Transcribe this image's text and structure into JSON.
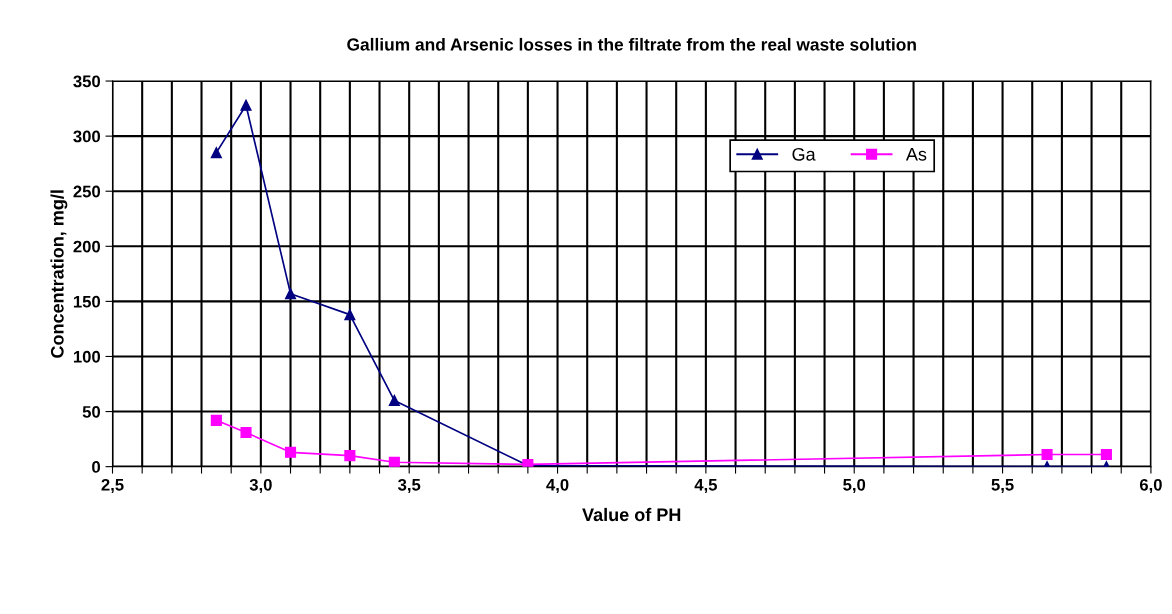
{
  "chart_data": {
    "type": "line",
    "title": "Gallium and Arsenic losses in the filtrate from the real waste solution",
    "xlabel": "Value of PH",
    "ylabel": "Concentration, mg/l",
    "x": [
      2.85,
      2.95,
      3.1,
      3.3,
      3.45,
      3.9,
      5.65,
      5.85
    ],
    "series": [
      {
        "name": "Ga",
        "color": "#000080",
        "marker": "triangle",
        "values": [
          285,
          328,
          157,
          138,
          60,
          1,
          0,
          0
        ]
      },
      {
        "name": "As",
        "color": "#ff00ff",
        "marker": "square",
        "values": [
          42,
          31,
          13,
          10,
          4,
          2,
          11,
          11
        ]
      }
    ],
    "xlim": [
      2.5,
      6.0
    ],
    "xticks": [
      {
        "value": 2.5,
        "label": "2,5"
      },
      {
        "value": 2.6,
        "label": null
      },
      {
        "value": 2.7,
        "label": null
      },
      {
        "value": 2.8,
        "label": null
      },
      {
        "value": 2.9,
        "label": null
      },
      {
        "value": 3.0,
        "label": "3,0"
      },
      {
        "value": 3.1,
        "label": null
      },
      {
        "value": 3.2,
        "label": null
      },
      {
        "value": 3.3,
        "label": null
      },
      {
        "value": 3.4,
        "label": null
      },
      {
        "value": 3.5,
        "label": "3,5"
      },
      {
        "value": 3.6,
        "label": null
      },
      {
        "value": 3.7,
        "label": null
      },
      {
        "value": 3.8,
        "label": null
      },
      {
        "value": 3.9,
        "label": null
      },
      {
        "value": 4.0,
        "label": "4,0"
      },
      {
        "value": 4.1,
        "label": null
      },
      {
        "value": 4.2,
        "label": null
      },
      {
        "value": 4.3,
        "label": null
      },
      {
        "value": 4.4,
        "label": null
      },
      {
        "value": 4.5,
        "label": "4,5"
      },
      {
        "value": 4.6,
        "label": null
      },
      {
        "value": 4.7,
        "label": null
      },
      {
        "value": 4.8,
        "label": null
      },
      {
        "value": 4.9,
        "label": null
      },
      {
        "value": 5.0,
        "label": "5,0"
      },
      {
        "value": 5.1,
        "label": null
      },
      {
        "value": 5.2,
        "label": null
      },
      {
        "value": 5.3,
        "label": null
      },
      {
        "value": 5.4,
        "label": null
      },
      {
        "value": 5.5,
        "label": "5,5"
      },
      {
        "value": 5.6,
        "label": null
      },
      {
        "value": 5.7,
        "label": null
      },
      {
        "value": 5.8,
        "label": null
      },
      {
        "value": 5.9,
        "label": null
      },
      {
        "value": 6.0,
        "label": "6,0"
      }
    ],
    "ylim": [
      0,
      350
    ],
    "yticks": [
      0,
      50,
      100,
      150,
      200,
      250,
      300,
      350
    ],
    "grid": true,
    "legend": "top right",
    "line_style": "solid"
  }
}
